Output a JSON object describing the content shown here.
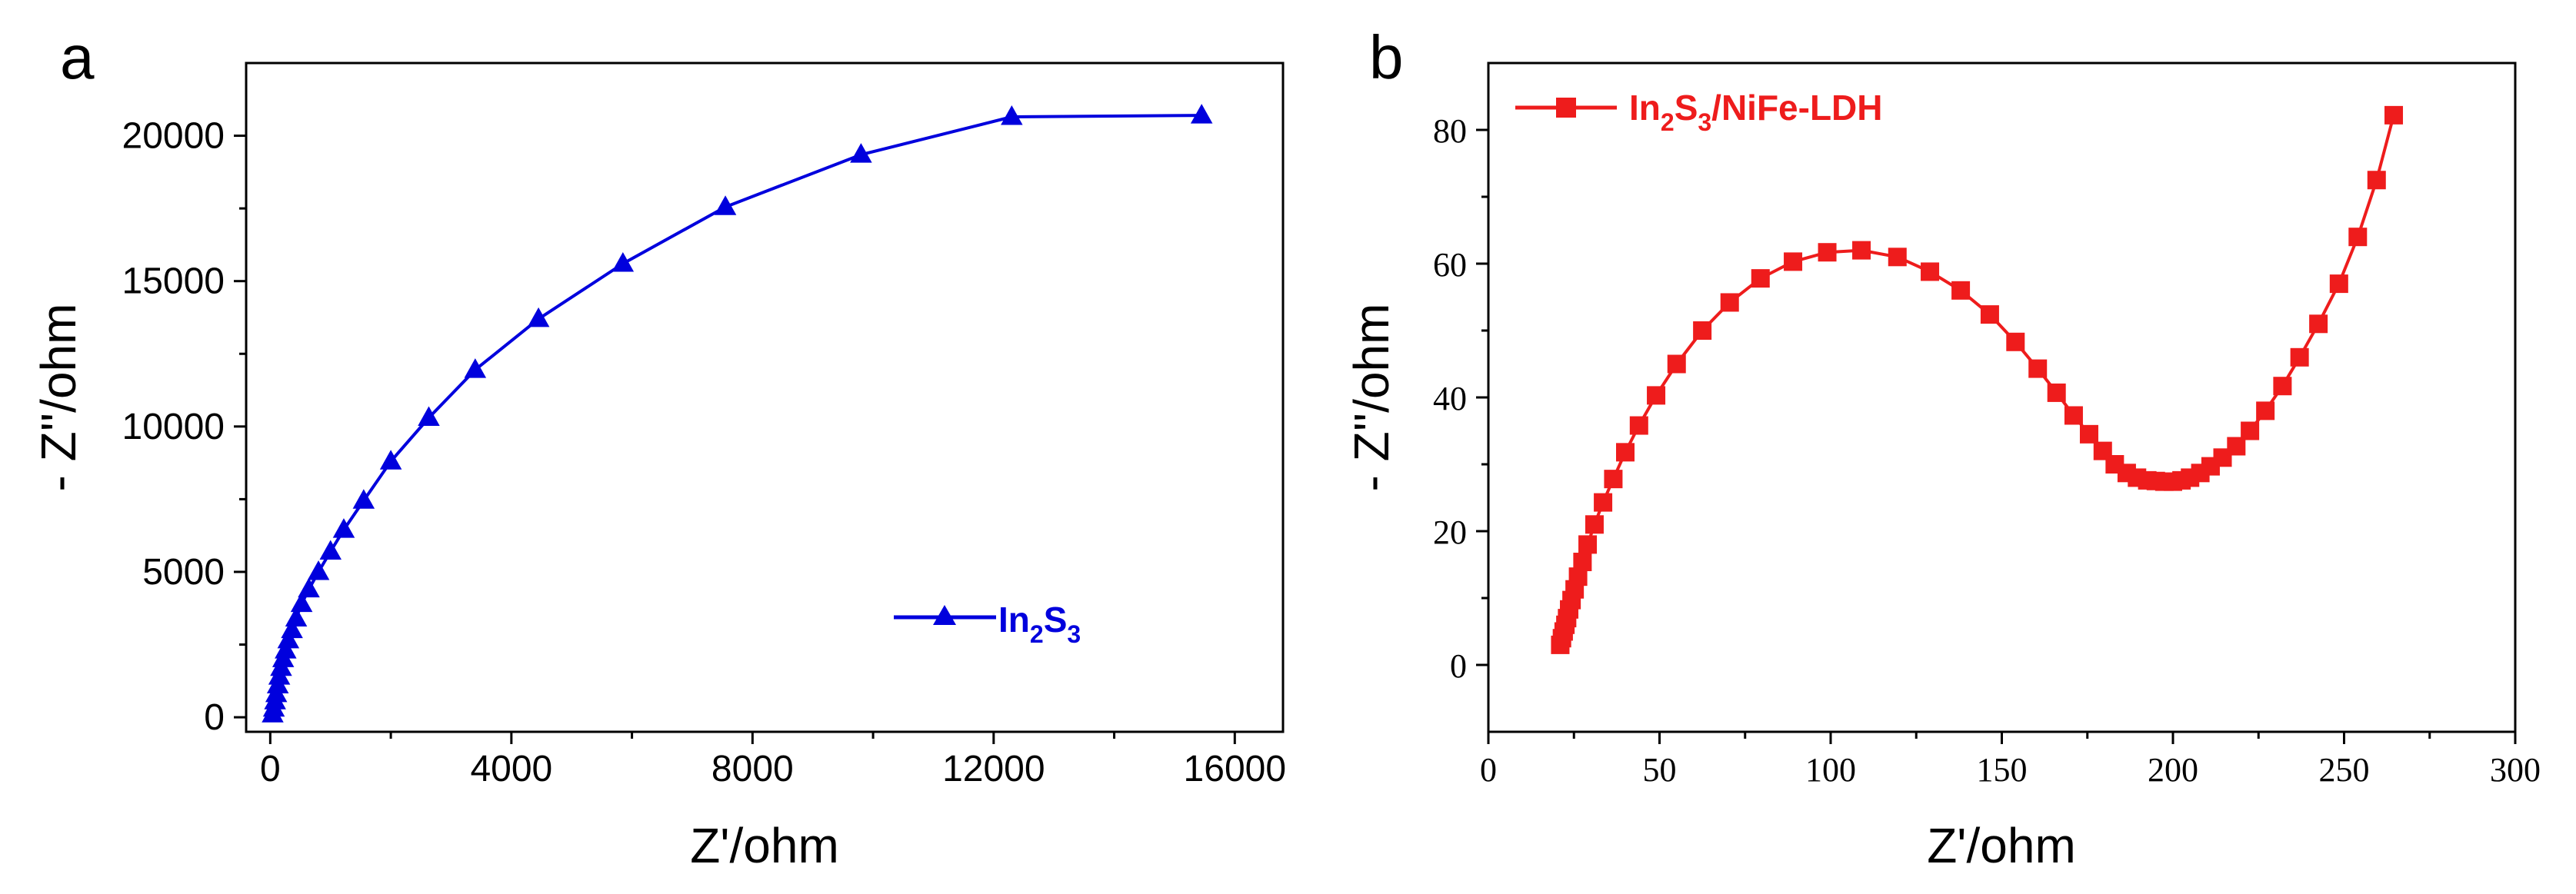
{
  "chart_data": [
    {
      "panel": "a",
      "type": "line",
      "xlabel": "Z'/ohm",
      "ylabel": "- Z''/ohm",
      "xlim": [
        -400,
        16800
      ],
      "ylim": [
        -500,
        22500
      ],
      "xticks": [
        0,
        4000,
        8000,
        12000,
        16000
      ],
      "xtick_labels": [
        "0",
        "4000",
        "8000",
        "12000",
        "16000"
      ],
      "yticks": [
        0,
        5000,
        10000,
        15000,
        20000
      ],
      "ytick_labels": [
        "0",
        "5000",
        "10000",
        "15000",
        "20000"
      ],
      "legend": {
        "label_main": "In",
        "sub1": "2",
        "mid": "S",
        "sub2": "3",
        "position": "center-right"
      },
      "series": [
        {
          "name": "In2S3",
          "color": "#0000dd",
          "marker": "triangle",
          "x": [
            40,
            60,
            80,
            100,
            125,
            150,
            180,
            215,
            255,
            300,
            360,
            430,
            520,
            640,
            800,
            1000,
            1220,
            1550,
            2000,
            2630,
            3400,
            4450,
            5850,
            7550,
            9800,
            12300,
            15450
          ],
          "y": [
            100,
            300,
            550,
            800,
            1100,
            1400,
            1700,
            2000,
            2300,
            2650,
            3000,
            3400,
            3900,
            4400,
            5000,
            5700,
            6450,
            7450,
            8800,
            10300,
            11950,
            13700,
            15600,
            17550,
            19350,
            20650,
            20700
          ]
        }
      ]
    },
    {
      "panel": "b",
      "type": "line",
      "xlabel": "Z'/ohm",
      "ylabel": "- Z''/ohm",
      "xlim": [
        0,
        300
      ],
      "ylim": [
        -10,
        90
      ],
      "xticks": [
        0,
        50,
        100,
        150,
        200,
        250,
        300
      ],
      "xtick_labels": [
        "0",
        "50",
        "100",
        "150",
        "200",
        "250",
        "300"
      ],
      "yticks": [
        0,
        20,
        40,
        60,
        80
      ],
      "ytick_labels": [
        "0",
        "20",
        "40",
        "60",
        "80"
      ],
      "legend": {
        "label_main": "In",
        "sub1": "2",
        "mid": "S",
        "sub2": "3",
        "rest": "/NiFe-LDH",
        "position": "top-left"
      },
      "series": [
        {
          "name": "In2S3/NiFe-LDH",
          "color": "#ee1c1c",
          "marker": "square",
          "x": [
            21.0,
            21.5,
            22.0,
            22.5,
            23.0,
            23.6,
            24.3,
            25.2,
            26.2,
            27.5,
            29.0,
            31.0,
            33.5,
            36.5,
            40.0,
            44.0,
            49.0,
            55.0,
            62.5,
            70.5,
            79.5,
            89.0,
            99.0,
            109.0,
            119.5,
            129.0,
            138.0,
            146.5,
            154.0,
            160.5,
            166.0,
            171.0,
            175.5,
            179.5,
            183.0,
            186.5,
            189.5,
            192.5,
            195.0,
            197.5,
            200.0,
            202.5,
            205.0,
            208.0,
            211.0,
            214.5,
            218.5,
            222.5,
            227.0,
            232.0,
            237.0,
            242.5,
            248.5,
            254.0,
            259.5,
            264.5
          ],
          "y": [
            3.0,
            4.0,
            5.0,
            6.0,
            7.0,
            8.3,
            9.7,
            11.3,
            13.2,
            15.4,
            18.0,
            21.0,
            24.3,
            27.8,
            31.8,
            35.8,
            40.3,
            45.0,
            50.0,
            54.2,
            57.8,
            60.3,
            61.7,
            62.0,
            61.0,
            58.8,
            56.0,
            52.4,
            48.3,
            44.3,
            40.7,
            37.3,
            34.5,
            32.0,
            30.0,
            28.7,
            28.0,
            27.6,
            27.5,
            27.4,
            27.4,
            27.6,
            28.0,
            28.7,
            29.7,
            31.0,
            32.7,
            35.0,
            38.0,
            41.7,
            46.0,
            51.0,
            57.0,
            64.0,
            72.5,
            82.2
          ]
        }
      ]
    }
  ]
}
